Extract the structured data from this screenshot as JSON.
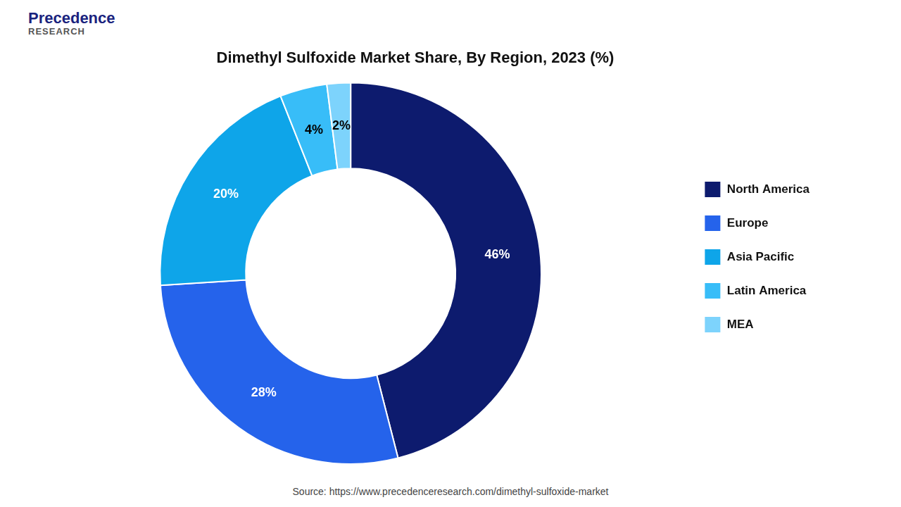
{
  "chart_data": {
    "type": "doughnut",
    "title": "Dimethyl Sulfoxide Market Share, By Region, 2023 (%)",
    "categories": [
      "North America",
      "Europe",
      "Asia Pacific",
      "Latin America",
      "MEA"
    ],
    "values": [
      46,
      28,
      20,
      4,
      2
    ],
    "value_labels": [
      "46%",
      "28%",
      "20%",
      "4%",
      "2%"
    ],
    "colors": [
      "#0d1b6e",
      "#2563eb",
      "#0ea5e9",
      "#38bdf8",
      "#7dd3fc"
    ],
    "data_labels": true,
    "legend": "right",
    "annotations": [
      "Precedence",
      "RESEARCH",
      "Source: https://www.precedenceresearch.com/dimethyl-sulfoxide-market"
    ]
  }
}
